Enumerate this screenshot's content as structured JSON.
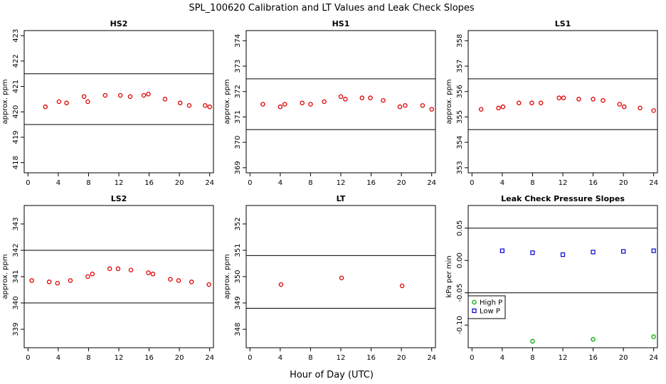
{
  "page_title": "SPL_100620  Calibration and LT Values and Leak Check Slopes",
  "x_axis_label": "Hour of Day (UTC)",
  "chart_data": [
    {
      "id": "hs2",
      "type": "scatter",
      "title": "HS2",
      "ylabel": "approx. ppm",
      "xlim": [
        -0.5,
        24.5
      ],
      "ylim": [
        417.6,
        423.2
      ],
      "xticks": [
        0,
        4,
        8,
        12,
        16,
        20,
        24
      ],
      "yticks": [
        418,
        419,
        420,
        421,
        422,
        423
      ],
      "hlines": [
        421.5,
        419.5
      ],
      "grid": false,
      "series": [
        {
          "color": "#dd0000",
          "marker": "circle",
          "x": [
            2.3,
            4.1,
            5.1,
            7.4,
            7.9,
            10.2,
            12.2,
            13.5,
            15.3,
            15.9,
            18.1,
            20.1,
            21.3,
            23.4,
            24.0
          ],
          "y": [
            420.2,
            420.4,
            420.35,
            420.6,
            420.4,
            420.65,
            420.65,
            420.6,
            420.65,
            420.7,
            420.5,
            420.35,
            420.25,
            420.25,
            420.2
          ]
        }
      ]
    },
    {
      "id": "hs1",
      "type": "scatter",
      "title": "HS1",
      "ylabel": "approx. ppm",
      "xlim": [
        -0.5,
        24.5
      ],
      "ylim": [
        368.8,
        374.4
      ],
      "xticks": [
        0,
        4,
        8,
        12,
        16,
        20,
        24
      ],
      "yticks": [
        369,
        370,
        371,
        372,
        373,
        374
      ],
      "hlines": [
        372.5,
        370.5
      ],
      "grid": false,
      "series": [
        {
          "color": "#dd0000",
          "marker": "circle",
          "x": [
            1.7,
            4.0,
            4.6,
            6.9,
            8.0,
            9.8,
            12.0,
            12.6,
            14.8,
            15.9,
            17.6,
            19.8,
            20.5,
            22.8,
            24.0
          ],
          "y": [
            371.5,
            371.4,
            371.5,
            371.55,
            371.5,
            371.6,
            371.8,
            371.7,
            371.75,
            371.75,
            371.65,
            371.4,
            371.45,
            371.45,
            371.3
          ]
        }
      ]
    },
    {
      "id": "ls1",
      "type": "scatter",
      "title": "LS1",
      "ylabel": "approx. ppm",
      "xlim": [
        -0.5,
        24.5
      ],
      "ylim": [
        352.8,
        358.4
      ],
      "xticks": [
        0,
        4,
        8,
        12,
        16,
        20,
        24
      ],
      "yticks": [
        353,
        354,
        355,
        356,
        357,
        358
      ],
      "hlines": [
        356.5,
        354.5
      ],
      "grid": false,
      "series": [
        {
          "color": "#dd0000",
          "marker": "circle",
          "x": [
            1.2,
            3.5,
            4.1,
            6.2,
            7.9,
            9.1,
            11.5,
            12.1,
            14.1,
            16.0,
            17.3,
            19.5,
            20.1,
            22.2,
            24.0
          ],
          "y": [
            355.3,
            355.35,
            355.4,
            355.55,
            355.55,
            355.55,
            355.75,
            355.75,
            355.7,
            355.7,
            355.65,
            355.5,
            355.4,
            355.35,
            355.25
          ]
        }
      ]
    },
    {
      "id": "ls2",
      "type": "scatter",
      "title": "LS2",
      "ylabel": "approx. ppm",
      "xlim": [
        -0.5,
        24.5
      ],
      "ylim": [
        338.3,
        343.7
      ],
      "xticks": [
        0,
        4,
        8,
        12,
        16,
        20,
        24
      ],
      "yticks": [
        339,
        340,
        341,
        342,
        343
      ],
      "hlines": [
        342.0,
        340.0
      ],
      "grid": false,
      "series": [
        {
          "color": "#dd0000",
          "marker": "circle",
          "x": [
            0.5,
            2.8,
            3.9,
            5.6,
            7.9,
            8.5,
            10.8,
            11.9,
            13.6,
            15.9,
            16.5,
            18.8,
            19.9,
            21.6,
            23.9
          ],
          "y": [
            340.85,
            340.8,
            340.75,
            340.85,
            341.0,
            341.1,
            341.3,
            341.3,
            341.25,
            341.15,
            341.1,
            340.9,
            340.85,
            340.8,
            340.7
          ]
        }
      ]
    },
    {
      "id": "lt",
      "type": "scatter",
      "title": "LT",
      "ylabel": "approx. ppm",
      "xlim": [
        -0.5,
        24.5
      ],
      "ylim": [
        347.3,
        352.7
      ],
      "xticks": [
        0,
        4,
        8,
        12,
        16,
        20,
        24
      ],
      "yticks": [
        348,
        349,
        350,
        351,
        352
      ],
      "hlines": [
        350.8,
        348.8
      ],
      "grid": false,
      "series": [
        {
          "color": "#dd0000",
          "marker": "circle",
          "x": [
            4.1,
            12.1,
            20.1
          ],
          "y": [
            349.7,
            349.95,
            349.65
          ]
        }
      ]
    },
    {
      "id": "leak",
      "type": "scatter",
      "title": "Leak Check Pressure Slopes",
      "ylabel": "kPa per min",
      "xlim": [
        -0.5,
        24.5
      ],
      "ylim": [
        -0.135,
        0.085
      ],
      "xticks": [
        0,
        4,
        8,
        12,
        16,
        20,
        24
      ],
      "yticks": [
        -0.1,
        -0.05,
        0.0,
        0.05
      ],
      "ytick_labels": [
        "-0.10",
        "-0.05",
        "0.00",
        "0.05"
      ],
      "hlines": [
        0.05,
        -0.05
      ],
      "grid": false,
      "legend": {
        "placement": "lower-left",
        "entries": [
          {
            "label": "High P",
            "color": "#00aa00",
            "marker": "circle"
          },
          {
            "label": "Low P",
            "color": "#0000cc",
            "marker": "square"
          }
        ]
      },
      "series": [
        {
          "name": "High P",
          "color": "#00aa00",
          "marker": "circle",
          "x": [
            8,
            16,
            24
          ],
          "y": [
            -0.125,
            -0.122,
            -0.118
          ]
        },
        {
          "name": "Low P",
          "color": "#0000cc",
          "marker": "square",
          "x": [
            4,
            8,
            12,
            16,
            20,
            24
          ],
          "y": [
            0.015,
            0.012,
            0.009,
            0.013,
            0.014,
            0.015
          ]
        }
      ]
    }
  ]
}
